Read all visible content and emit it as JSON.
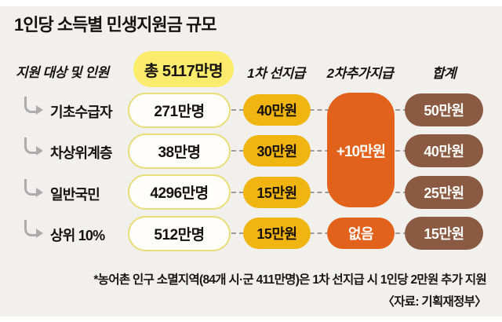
{
  "title": "1인당 소득별 민생지원금 규모",
  "header": {
    "target_label": "지원 대상 및 인원",
    "total_badge": "총 5117만명",
    "columns": {
      "first": "1차 선지급",
      "second": "2차추가지급",
      "total": "합계"
    }
  },
  "chart_data": {
    "type": "table",
    "title": "1인당 소득별 민생지원금 규모",
    "total_recipients": "총 5117만명",
    "columns": [
      "지원 대상 및 인원",
      "인원",
      "1차 선지급",
      "2차추가지급",
      "합계"
    ],
    "rows": [
      {
        "group": "기초수급자",
        "count": "271만명",
        "first": "40만원",
        "second": "+10만원",
        "total": "50만원"
      },
      {
        "group": "차상위계층",
        "count": "38만명",
        "first": "30만원",
        "second": "+10만원",
        "total": "40만원"
      },
      {
        "group": "일반국민",
        "count": "4296만명",
        "first": "15만원",
        "second": "+10만원",
        "total": "25만원"
      },
      {
        "group": "상위 10%",
        "count": "512만명",
        "first": "15만원",
        "second": "없음",
        "total": "15만원"
      }
    ],
    "merged_cell": {
      "label": "+10만원",
      "column": "2차추가지급",
      "applies_to": [
        "기초수급자",
        "차상위계층",
        "일반국민"
      ]
    },
    "grid": false,
    "legend_position": "none"
  },
  "footer": {
    "footnote": "*농어촌 인구 소멸지역(84개 시·군 411만명)은 1차 선지급 시 1인당 2만원 추가 지원",
    "source": "〈자료: 기획재정부〉"
  },
  "colors": {
    "background": "#F2F0ED",
    "badge_yellow": "#FBEC6E",
    "pill_gold": "#F0B511",
    "pill_orange": "#E2621B",
    "pill_brown": "#8A5A43",
    "count_border": "#E9DD7B",
    "arrow_gray": "#ACACAC",
    "dots_gray": "#9B9B9B",
    "text_dark": "#171212"
  }
}
